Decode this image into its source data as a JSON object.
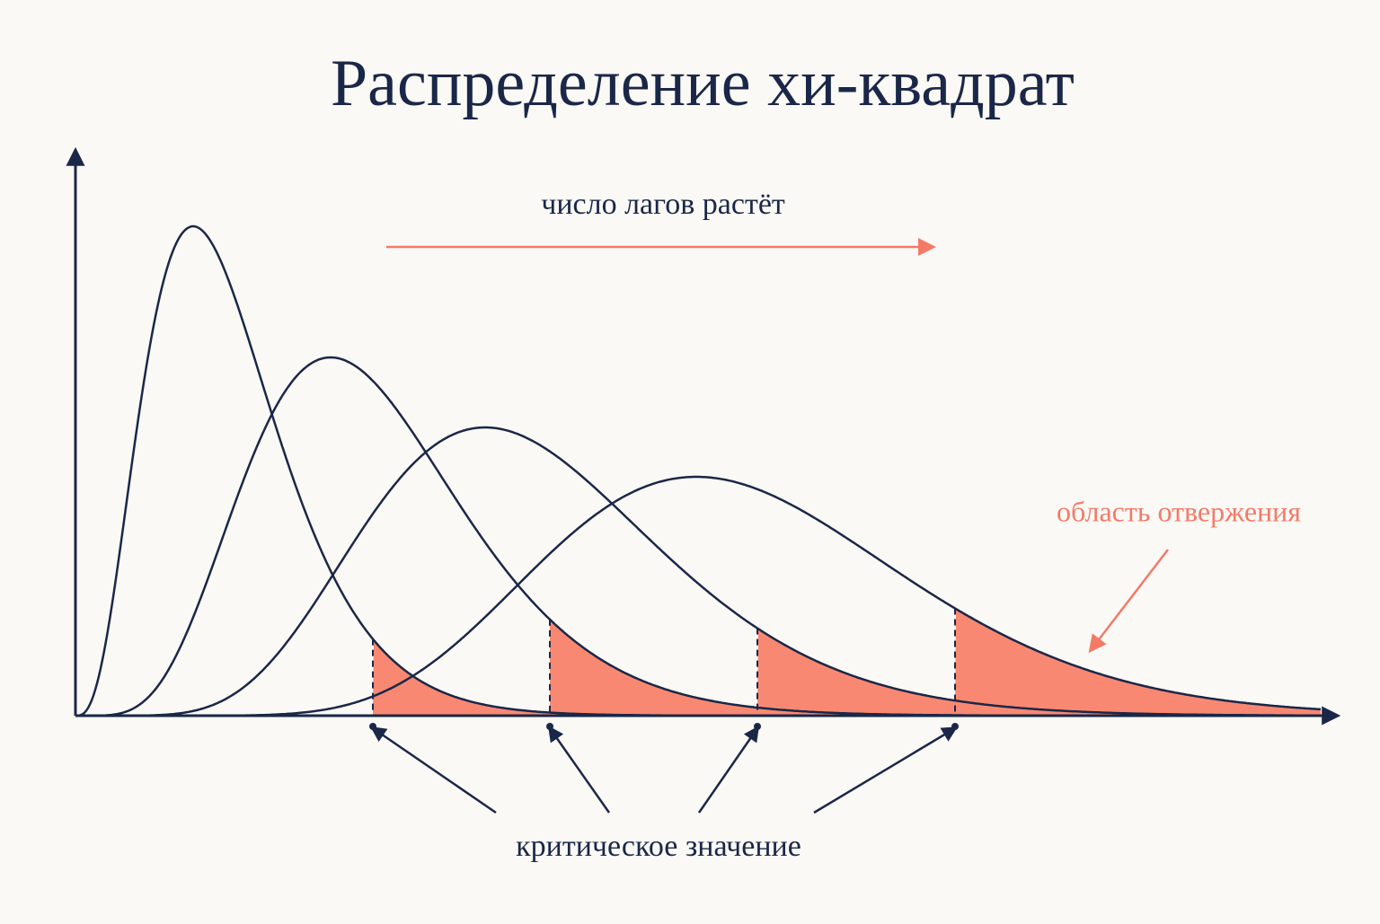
{
  "title": "Распределение хи-квадрат",
  "labels": {
    "lags": "число лагов растёт",
    "rejection": "область отвержения",
    "critical": "критическое значение"
  }
}
